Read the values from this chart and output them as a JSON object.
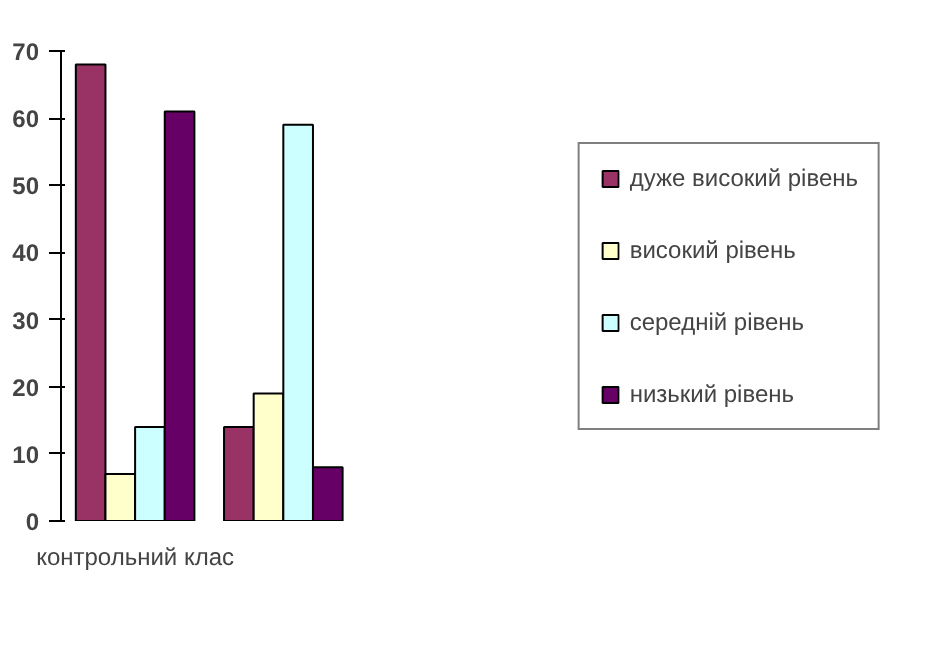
{
  "chart_data": {
    "type": "bar",
    "categories": [
      "контрольний клас",
      null
    ],
    "series": [
      {
        "name": "дуже високий рівень",
        "color": "#993366",
        "values": [
          68,
          14
        ]
      },
      {
        "name": "високий рівень",
        "color": "#ffffcc",
        "values": [
          7,
          19
        ]
      },
      {
        "name": "середній рівень",
        "color": "#ccffff",
        "values": [
          14,
          59
        ]
      },
      {
        "name": "низький рівень",
        "color": "#660066",
        "values": [
          61,
          8
        ]
      }
    ],
    "ylim": [
      0,
      70
    ],
    "yticks": [
      0,
      10,
      20,
      30,
      40,
      50,
      60,
      70
    ],
    "grid": false,
    "legend": "right"
  }
}
